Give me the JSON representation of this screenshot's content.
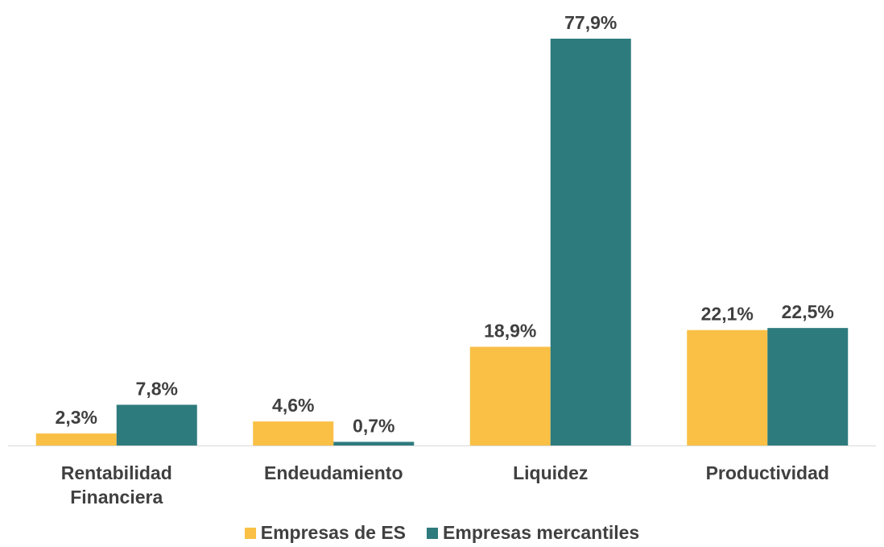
{
  "chart_data": {
    "type": "bar",
    "categories": [
      "Rentabilidad Financiera",
      "Endeudamiento",
      "Liquidez",
      "Productividad"
    ],
    "series": [
      {
        "name": "Empresas de ES",
        "color": "#F9C045",
        "values": [
          2.3,
          4.6,
          18.9,
          22.1
        ],
        "value_labels": [
          "2,3%",
          "4,6%",
          "18,9%",
          "22,1%"
        ]
      },
      {
        "name": "Empresas mercantiles",
        "color": "#2E7B7E",
        "values": [
          7.8,
          0.7,
          77.9,
          22.5
        ],
        "value_labels": [
          "7,8%",
          "0,7%",
          "77,9%",
          "22,5%"
        ]
      }
    ],
    "legend": "bottom"
  }
}
